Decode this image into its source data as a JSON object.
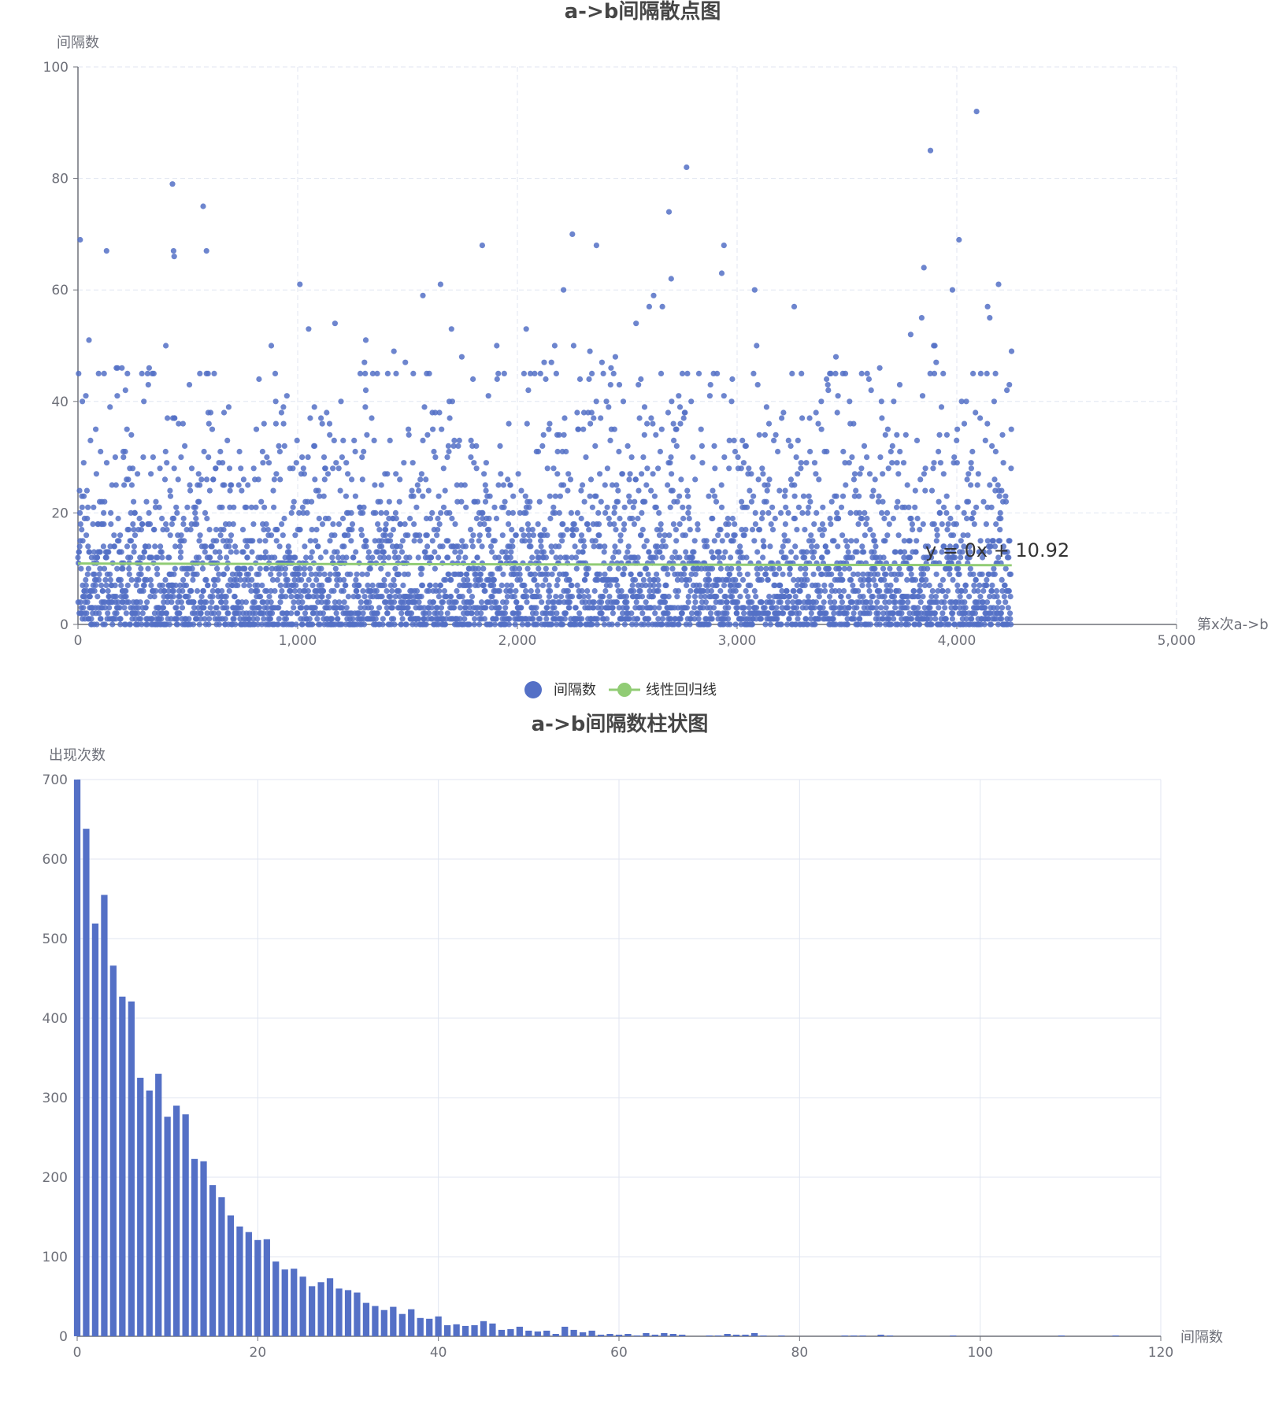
{
  "chart_data": [
    {
      "type": "scatter",
      "title": "a->b间隔散点图",
      "xlabel": "第x次a->b",
      "ylabel": "间隔数",
      "xlim": [
        0,
        5000
      ],
      "ylim": [
        0,
        100
      ],
      "xticks": [
        "0",
        "1,000",
        "2,000",
        "3,000",
        "4,000",
        "5,000"
      ],
      "yticks": [
        "0",
        "20",
        "40",
        "60",
        "80",
        "100"
      ],
      "grid": "dashed",
      "legend": [
        "间隔数",
        "线性回归线"
      ],
      "legend_position": "bottom-center",
      "point_count": 4250,
      "regression": {
        "name": "线性回归线",
        "equation": "y = 0x + 10.92",
        "slope": 0,
        "intercept": 10.92,
        "x_range": [
          0,
          4250
        ]
      },
      "outliers": [
        {
          "x": 10,
          "y": 69
        },
        {
          "x": 130,
          "y": 67
        },
        {
          "x": 430,
          "y": 79
        },
        {
          "x": 435,
          "y": 67
        },
        {
          "x": 438,
          "y": 66
        },
        {
          "x": 570,
          "y": 75
        },
        {
          "x": 585,
          "y": 67
        },
        {
          "x": 1010,
          "y": 61
        },
        {
          "x": 1570,
          "y": 59
        },
        {
          "x": 1650,
          "y": 61
        },
        {
          "x": 1840,
          "y": 68
        },
        {
          "x": 2210,
          "y": 60
        },
        {
          "x": 2250,
          "y": 70
        },
        {
          "x": 2360,
          "y": 68
        },
        {
          "x": 2620,
          "y": 59
        },
        {
          "x": 2690,
          "y": 74
        },
        {
          "x": 2700,
          "y": 62
        },
        {
          "x": 2770,
          "y": 82
        },
        {
          "x": 2940,
          "y": 68
        },
        {
          "x": 2930,
          "y": 63
        },
        {
          "x": 3080,
          "y": 60
        },
        {
          "x": 3260,
          "y": 57
        },
        {
          "x": 3850,
          "y": 64
        },
        {
          "x": 3880,
          "y": 85
        },
        {
          "x": 3980,
          "y": 60
        },
        {
          "x": 4010,
          "y": 69
        },
        {
          "x": 4090,
          "y": 92
        },
        {
          "x": 4140,
          "y": 57
        },
        {
          "x": 4150,
          "y": 55
        },
        {
          "x": 4190,
          "y": 61
        },
        {
          "x": 4170,
          "y": 40
        },
        {
          "x": 20,
          "y": 40
        },
        {
          "x": 50,
          "y": 51
        },
        {
          "x": 180,
          "y": 46
        },
        {
          "x": 200,
          "y": 46
        },
        {
          "x": 400,
          "y": 50
        },
        {
          "x": 880,
          "y": 50
        },
        {
          "x": 1050,
          "y": 53
        },
        {
          "x": 1170,
          "y": 54
        },
        {
          "x": 1310,
          "y": 51
        },
        {
          "x": 1700,
          "y": 53
        },
        {
          "x": 2040,
          "y": 53
        },
        {
          "x": 2170,
          "y": 50
        },
        {
          "x": 2330,
          "y": 49
        },
        {
          "x": 2540,
          "y": 54
        },
        {
          "x": 2600,
          "y": 57
        },
        {
          "x": 2660,
          "y": 57
        },
        {
          "x": 3790,
          "y": 52
        },
        {
          "x": 3840,
          "y": 55
        },
        {
          "x": 3900,
          "y": 50
        }
      ]
    },
    {
      "type": "bar",
      "title": "a->b间隔数柱状图",
      "xlabel": "间隔数",
      "ylabel": "出现次数",
      "xlim": [
        0,
        120
      ],
      "ylim": [
        0,
        700
      ],
      "xticks": [
        "0",
        "20",
        "40",
        "60",
        "80",
        "100",
        "120"
      ],
      "yticks": [
        "0",
        "100",
        "200",
        "300",
        "400",
        "500",
        "600",
        "700"
      ],
      "grid": "solid",
      "x": [
        0,
        1,
        2,
        3,
        4,
        5,
        6,
        7,
        8,
        9,
        10,
        11,
        12,
        13,
        14,
        15,
        16,
        17,
        18,
        19,
        20,
        21,
        22,
        23,
        24,
        25,
        26,
        27,
        28,
        29,
        30,
        31,
        32,
        33,
        34,
        35,
        36,
        37,
        38,
        39,
        40,
        41,
        42,
        43,
        44,
        45,
        46,
        47,
        48,
        49,
        50,
        51,
        52,
        53,
        54,
        55,
        56,
        57,
        58,
        59,
        60,
        61,
        62,
        63,
        64,
        65,
        66,
        67,
        68,
        69,
        70,
        71,
        72,
        73,
        74,
        75,
        76,
        77,
        78,
        79,
        80,
        81,
        82,
        83,
        84,
        85,
        86,
        87,
        88,
        89,
        90,
        91,
        92,
        93,
        94,
        95,
        96,
        97,
        98,
        99,
        100,
        101,
        102,
        103,
        104,
        105,
        106,
        107,
        108,
        109,
        110,
        111,
        112,
        113,
        114,
        115,
        116,
        117,
        118,
        119
      ],
      "values": [
        705,
        638,
        519,
        555,
        466,
        427,
        421,
        325,
        309,
        330,
        276,
        290,
        279,
        223,
        220,
        190,
        175,
        152,
        138,
        131,
        121,
        122,
        94,
        84,
        85,
        75,
        63,
        68,
        73,
        60,
        58,
        55,
        42,
        38,
        33,
        37,
        28,
        34,
        23,
        22,
        25,
        14,
        15,
        13,
        14,
        19,
        16,
        8,
        9,
        12,
        7,
        6,
        7,
        3,
        12,
        8,
        5,
        7,
        2,
        3,
        2,
        3,
        1,
        4,
        2,
        4,
        3,
        2,
        0,
        0,
        1,
        1,
        3,
        2,
        2,
        4,
        1,
        0,
        1,
        0,
        0,
        0,
        0,
        0,
        0,
        1,
        1,
        1,
        0,
        2,
        1,
        0,
        0,
        0,
        0,
        0,
        0,
        1,
        0,
        0,
        0,
        0,
        0,
        0,
        0,
        0,
        0,
        0,
        0,
        1,
        0,
        0,
        0,
        0,
        0,
        1,
        0,
        0,
        0,
        0
      ],
      "color": "#5470c6"
    }
  ],
  "colors": {
    "scatter": "#5470c6",
    "regression": "#91cc75"
  }
}
